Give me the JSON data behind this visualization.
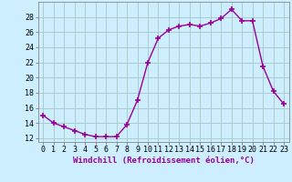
{
  "x": [
    0,
    1,
    2,
    3,
    4,
    5,
    6,
    7,
    8,
    9,
    10,
    11,
    12,
    13,
    14,
    15,
    16,
    17,
    18,
    19,
    20,
    21,
    22,
    23
  ],
  "y": [
    15.0,
    14.0,
    13.5,
    13.0,
    12.5,
    12.2,
    12.2,
    12.2,
    13.8,
    17.0,
    22.0,
    25.2,
    26.3,
    26.8,
    27.0,
    26.8,
    27.2,
    27.8,
    29.0,
    27.5,
    27.5,
    21.5,
    18.2,
    16.5
  ],
  "line_color": "#990099",
  "marker": "+",
  "marker_size": 4,
  "marker_lw": 1.2,
  "bg_color": "#cceeff",
  "grid_color": "#aacccc",
  "xlabel": "Windchill (Refroidissement éolien,°C)",
  "xlabel_fontsize": 6.5,
  "xlabel_fontweight": "bold",
  "ylabel_ticks": [
    12,
    14,
    16,
    18,
    20,
    22,
    24,
    26,
    28
  ],
  "xlim": [
    -0.5,
    23.5
  ],
  "ylim": [
    11.5,
    30.0
  ],
  "tick_fontsize": 6,
  "line_width": 1.0
}
